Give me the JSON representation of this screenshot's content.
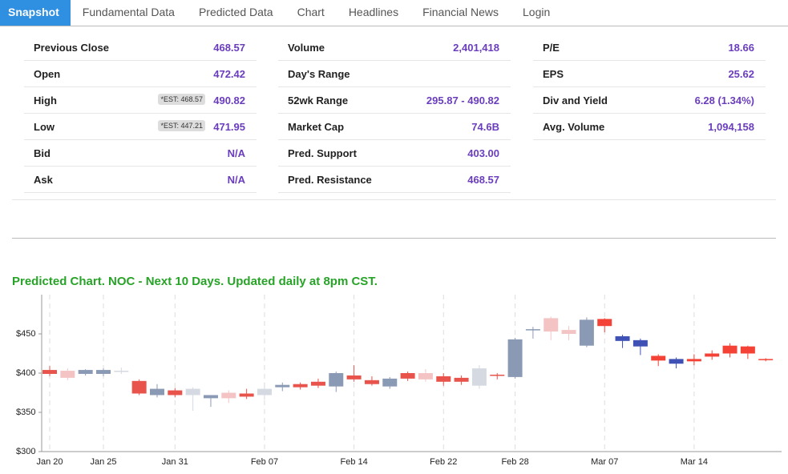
{
  "tabs": [
    "Snapshot",
    "Fundamental Data",
    "Predicted Data",
    "Chart",
    "Headlines",
    "Financial News",
    "Login"
  ],
  "stats": [
    [
      {
        "label": "Previous Close",
        "value": "468.57"
      },
      {
        "label": "Open",
        "value": "472.42"
      },
      {
        "label": "High",
        "value": "490.82",
        "note": "*EST: 468.57"
      },
      {
        "label": "Low",
        "value": "471.95",
        "note": "*EST: 447.21"
      },
      {
        "label": "Bid",
        "value": "N/A"
      },
      {
        "label": "Ask",
        "value": "N/A"
      }
    ],
    [
      {
        "label": "Volume",
        "value": "2,401,418"
      },
      {
        "label": "Day's Range"
      },
      {
        "label": "52wk Range",
        "value": "295.87 - 490.82"
      },
      {
        "label": "Market Cap",
        "value": "74.6B"
      },
      {
        "label": "Pred. Support",
        "value": "403.00"
      },
      {
        "label": "Pred. Resistance",
        "value": "468.57"
      }
    ],
    [
      {
        "label": "P/E",
        "value": "18.66"
      },
      {
        "label": "EPS",
        "value": "25.62"
      },
      {
        "label": "Div and Yield",
        "value": "6.28 (1.34%)"
      },
      {
        "label": "Avg. Volume",
        "value": "1,094,158"
      }
    ]
  ],
  "chart_data": {
    "type": "candlestick",
    "title": "Predicted Chart. NOC - Next 10 Days. Updated daily at 8pm CST.",
    "categories": [
      "Jan 20",
      null,
      null,
      "Jan 25",
      null,
      null,
      null,
      "Jan 31",
      null,
      null,
      null,
      null,
      "Feb 07",
      null,
      null,
      null,
      null,
      "Feb 14",
      null,
      null,
      null,
      null,
      "Feb 22",
      null,
      null,
      null,
      "Feb 28",
      null,
      null,
      null,
      null,
      "Mar 07",
      null,
      null,
      null,
      null,
      "Mar 14",
      null,
      null,
      null,
      null
    ],
    "open": [
      404,
      403,
      399,
      399,
      402,
      390,
      372,
      378,
      372,
      368,
      368,
      374,
      372,
      382,
      382,
      384,
      383,
      397,
      391,
      383,
      393,
      400,
      396,
      394,
      384,
      398,
      395,
      456,
      453,
      455,
      435,
      469,
      447,
      442,
      422,
      418,
      418,
      421,
      435,
      434,
      418
    ],
    "high": [
      409,
      406,
      405,
      406,
      407,
      392,
      386,
      381,
      382,
      372,
      378,
      380,
      388,
      388,
      388,
      393,
      402,
      410,
      396,
      395,
      402,
      405,
      400,
      397,
      410,
      400,
      445,
      459,
      472,
      460,
      471,
      470,
      449,
      444,
      424,
      420,
      424,
      429,
      438,
      435,
      419
    ],
    "low": [
      396,
      391,
      397,
      396,
      399,
      372,
      369,
      369,
      352,
      357,
      362,
      367,
      366,
      377,
      379,
      381,
      376,
      389,
      384,
      380,
      390,
      389,
      384,
      385,
      380,
      392,
      393,
      444,
      442,
      442,
      433,
      452,
      432,
      423,
      409,
      406,
      410,
      417,
      420,
      418,
      415
    ],
    "close": [
      399,
      394,
      404,
      404,
      403,
      374,
      380,
      372,
      380,
      372,
      375,
      370,
      380,
      385,
      386,
      389,
      400,
      392,
      386,
      393,
      400,
      392,
      389,
      389,
      406,
      397,
      443,
      455,
      470,
      450,
      468,
      460,
      441,
      434,
      416,
      412,
      415,
      425,
      425,
      425,
      417
    ],
    "colors": [
      "#e8534b",
      "#f4c4c4",
      "#8a9ab5",
      "#8a9ab5",
      "#d5d9e1",
      "#e8534b",
      "#8a9ab5",
      "#e8534b",
      "#d5d9e1",
      "#8a9ab5",
      "#f4c4c4",
      "#e8534b",
      "#d5d9e1",
      "#8a9ab5",
      "#e8534b",
      "#e8534b",
      "#8a9ab5",
      "#e8534b",
      "#e8534b",
      "#8a9ab5",
      "#e8534b",
      "#f4c4c4",
      "#e8534b",
      "#e8534b",
      "#d5d9e1",
      "#e8534b",
      "#8a9ab5",
      "#8a9ab5",
      "#f4c4c4",
      "#f4c4c4",
      "#8a9ab5",
      "#f44336",
      "#3f51b5",
      "#3f51b5",
      "#f44336",
      "#3f51b5",
      "#f44336",
      "#f44336",
      "#f44336",
      "#f44336",
      "#f44336"
    ],
    "ylim": [
      300,
      500
    ],
    "yticks": [
      {
        "value": 300,
        "label": "$300"
      },
      {
        "value": 350,
        "label": "$350"
      },
      {
        "value": 400,
        "label": "$400"
      },
      {
        "value": 450,
        "label": "$450"
      }
    ]
  }
}
